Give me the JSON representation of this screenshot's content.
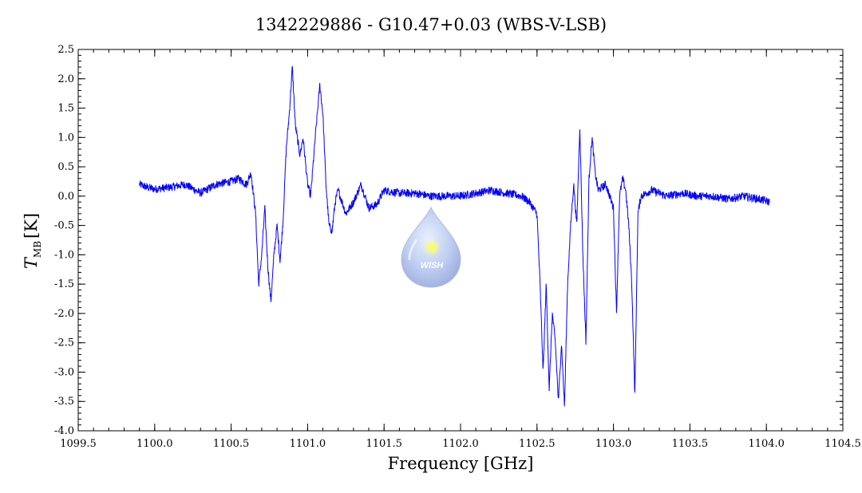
{
  "chart_data": {
    "type": "line",
    "title": "1342229886 - G10.47+0.03 (WBS-V-LSB)",
    "xlabel": "Frequency [GHz]",
    "ylabel": {
      "symbol": "T",
      "subscript": "MB",
      "unit": "[K]"
    },
    "xlim": [
      1099.5,
      1104.5
    ],
    "ylim": [
      -4.0,
      2.5
    ],
    "x_ticks": [
      "1099.5",
      "1100.0",
      "1100.5",
      "1101.0",
      "1101.5",
      "1102.0",
      "1102.5",
      "1103.0",
      "1103.5",
      "1104.0",
      "1104.5"
    ],
    "y_ticks": [
      "2.5",
      "2.0",
      "1.5",
      "1.0",
      "0.5",
      "0.0",
      "-0.5",
      "-1.0",
      "-1.5",
      "-2.0",
      "-2.5",
      "-3.0",
      "-3.5",
      "-4.0"
    ],
    "grid": false,
    "line_color": "#0000ff",
    "noise_amplitude": 0.07,
    "series": [
      {
        "points": [
          [
            1099.9,
            0.2
          ],
          [
            1099.95,
            0.15
          ],
          [
            1100.0,
            0.12
          ],
          [
            1100.1,
            0.15
          ],
          [
            1100.2,
            0.2
          ],
          [
            1100.3,
            0.05
          ],
          [
            1100.4,
            0.2
          ],
          [
            1100.5,
            0.25
          ],
          [
            1100.55,
            0.3
          ],
          [
            1100.6,
            0.2
          ],
          [
            1100.63,
            0.4
          ],
          [
            1100.66,
            -0.3
          ],
          [
            1100.68,
            -1.5
          ],
          [
            1100.7,
            -1.0
          ],
          [
            1100.72,
            -0.2
          ],
          [
            1100.74,
            -1.2
          ],
          [
            1100.76,
            -1.8
          ],
          [
            1100.78,
            -1.0
          ],
          [
            1100.8,
            -0.5
          ],
          [
            1100.82,
            -1.1
          ],
          [
            1100.84,
            -0.4
          ],
          [
            1100.86,
            0.8
          ],
          [
            1100.88,
            1.4
          ],
          [
            1100.9,
            2.2
          ],
          [
            1100.92,
            1.2
          ],
          [
            1100.95,
            0.7
          ],
          [
            1100.97,
            1.0
          ],
          [
            1101.0,
            0.2
          ],
          [
            1101.02,
            0.0
          ],
          [
            1101.05,
            1.0
          ],
          [
            1101.08,
            1.9
          ],
          [
            1101.1,
            1.4
          ],
          [
            1101.12,
            0.2
          ],
          [
            1101.14,
            -0.5
          ],
          [
            1101.16,
            -0.6
          ],
          [
            1101.18,
            -0.1
          ],
          [
            1101.2,
            0.1
          ],
          [
            1101.25,
            -0.3
          ],
          [
            1101.3,
            -0.1
          ],
          [
            1101.35,
            0.2
          ],
          [
            1101.4,
            -0.2
          ],
          [
            1101.45,
            -0.15
          ],
          [
            1101.5,
            0.1
          ],
          [
            1101.6,
            0.05
          ],
          [
            1101.7,
            0.05
          ],
          [
            1101.8,
            0.0
          ],
          [
            1101.9,
            0.0
          ],
          [
            1102.0,
            0.0
          ],
          [
            1102.1,
            0.05
          ],
          [
            1102.2,
            0.1
          ],
          [
            1102.3,
            0.05
          ],
          [
            1102.4,
            0.0
          ],
          [
            1102.45,
            -0.1
          ],
          [
            1102.5,
            -0.3
          ],
          [
            1102.52,
            -1.5
          ],
          [
            1102.54,
            -3.0
          ],
          [
            1102.56,
            -1.5
          ],
          [
            1102.58,
            -3.3
          ],
          [
            1102.6,
            -2.0
          ],
          [
            1102.62,
            -2.5
          ],
          [
            1102.64,
            -3.5
          ],
          [
            1102.66,
            -2.5
          ],
          [
            1102.68,
            -3.6
          ],
          [
            1102.7,
            -1.5
          ],
          [
            1102.72,
            -0.5
          ],
          [
            1102.74,
            0.2
          ],
          [
            1102.76,
            -0.5
          ],
          [
            1102.78,
            1.2
          ],
          [
            1102.8,
            -1.0
          ],
          [
            1102.82,
            -2.5
          ],
          [
            1102.84,
            0.3
          ],
          [
            1102.86,
            1.0
          ],
          [
            1102.88,
            0.4
          ],
          [
            1102.9,
            0.1
          ],
          [
            1102.95,
            0.2
          ],
          [
            1103.0,
            -0.2
          ],
          [
            1103.02,
            -2.0
          ],
          [
            1103.04,
            0.0
          ],
          [
            1103.06,
            0.3
          ],
          [
            1103.08,
            0.1
          ],
          [
            1103.1,
            -0.5
          ],
          [
            1103.12,
            -1.5
          ],
          [
            1103.14,
            -3.4
          ],
          [
            1103.16,
            -0.3
          ],
          [
            1103.18,
            0.0
          ],
          [
            1103.25,
            0.1
          ],
          [
            1103.35,
            0.0
          ],
          [
            1103.45,
            0.05
          ],
          [
            1103.55,
            0.0
          ],
          [
            1103.65,
            0.0
          ],
          [
            1103.75,
            -0.05
          ],
          [
            1103.85,
            0.0
          ],
          [
            1103.95,
            -0.05
          ],
          [
            1104.02,
            -0.1
          ]
        ]
      }
    ]
  },
  "logo": {
    "text": "WISH"
  }
}
